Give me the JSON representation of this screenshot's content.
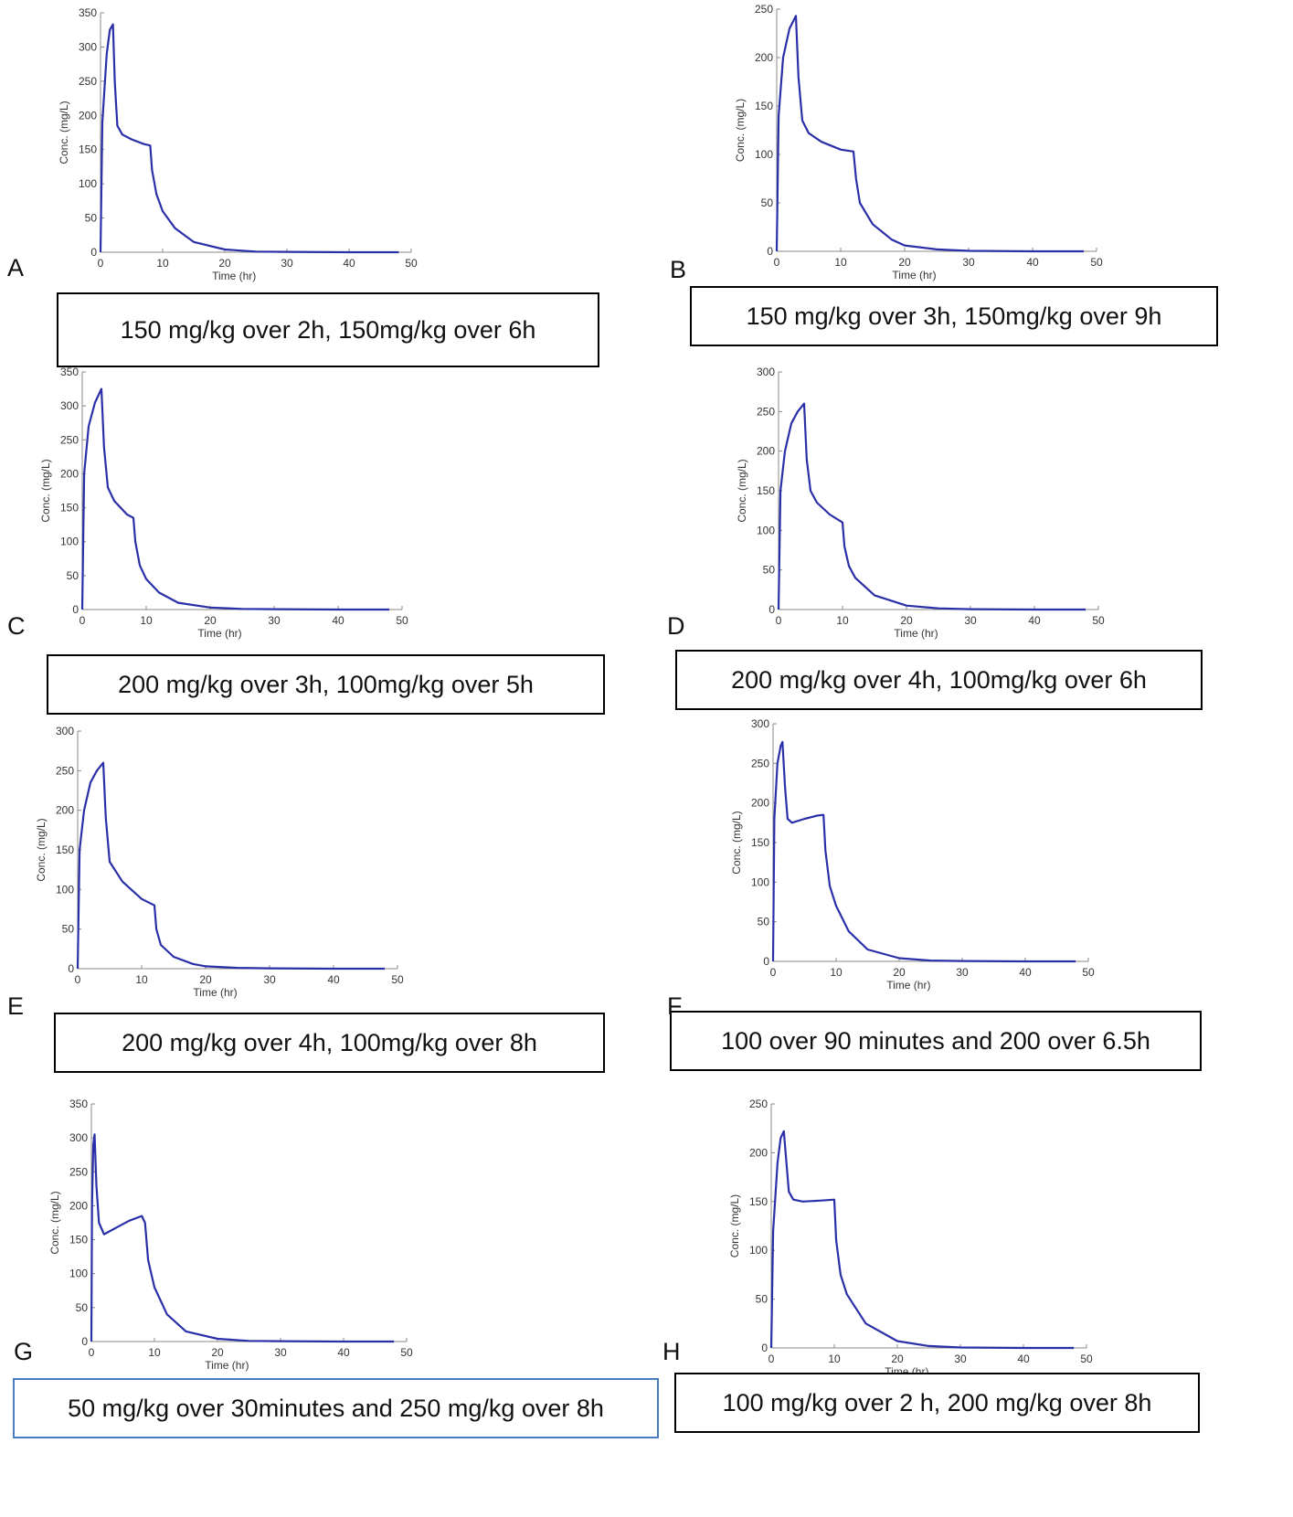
{
  "panel_labels": [
    "A",
    "B",
    "C",
    "D",
    "E",
    "F",
    "G",
    "H"
  ],
  "captions": [
    "150 mg/kg over 2h, 150mg/kg over 6h",
    "150 mg/kg over 3h, 150mg/kg over 9h",
    "200 mg/kg over 3h, 100mg/kg over 5h",
    "200 mg/kg over 4h, 100mg/kg over 6h",
    "200 mg/kg over 4h, 100mg/kg over 8h",
    "100 over 90 minutes and 200 over 6.5h",
    "50 mg/kg over 30minutes and 250 mg/kg over 8h",
    "100 mg/kg over 2 h, 200 mg/kg over 8h"
  ],
  "styles": {
    "line_color": "#2a2fa8",
    "axis_color": "#888888",
    "caption_blue_border": "#4a7cc0"
  },
  "chart_data": [
    {
      "panel": "A",
      "type": "line",
      "xlabel": "Time (hr)",
      "ylabel": "Conc. (mg/L)",
      "xlim": [
        0,
        50
      ],
      "ylim": [
        0,
        350
      ],
      "xticks": [
        0,
        10,
        20,
        30,
        40,
        50
      ],
      "yticks": [
        0,
        50,
        100,
        150,
        200,
        250,
        300,
        350
      ],
      "series": [
        {
          "x": [
            0,
            0.3,
            1,
            1.5,
            2,
            2.3,
            2.7,
            3.5,
            5,
            7,
            8,
            8.3,
            9,
            10,
            12,
            15,
            20,
            25,
            30,
            40,
            48
          ],
          "y": [
            0,
            190,
            290,
            325,
            333,
            250,
            185,
            172,
            165,
            158,
            156,
            120,
            85,
            60,
            35,
            15,
            4,
            1,
            0.5,
            0,
            0
          ]
        }
      ]
    },
    {
      "panel": "B",
      "type": "line",
      "xlabel": "Time (hr)",
      "ylabel": "Conc. (mg/L)",
      "xlim": [
        0,
        50
      ],
      "ylim": [
        0,
        250
      ],
      "xticks": [
        0,
        10,
        20,
        30,
        40,
        50
      ],
      "yticks": [
        0,
        50,
        100,
        150,
        200,
        250
      ],
      "series": [
        {
          "x": [
            0,
            0.3,
            1,
            2,
            3,
            3.4,
            4,
            5,
            7,
            10,
            12,
            12.4,
            13,
            15,
            18,
            20,
            25,
            30,
            40,
            48
          ],
          "y": [
            0,
            140,
            200,
            230,
            243,
            180,
            135,
            122,
            113,
            105,
            103,
            75,
            50,
            28,
            12,
            6,
            2,
            0.5,
            0,
            0
          ]
        }
      ]
    },
    {
      "panel": "C",
      "type": "line",
      "xlabel": "Time (hr)",
      "ylabel": "Conc. (mg/L)",
      "xlim": [
        0,
        50
      ],
      "ylim": [
        0,
        350
      ],
      "xticks": [
        0,
        10,
        20,
        30,
        40,
        50
      ],
      "yticks": [
        0,
        50,
        100,
        150,
        200,
        250,
        300,
        350
      ],
      "series": [
        {
          "x": [
            0,
            0.3,
            1,
            2,
            3,
            3.4,
            4,
            5,
            7,
            8,
            8.3,
            9,
            10,
            12,
            15,
            20,
            25,
            30,
            40,
            48
          ],
          "y": [
            0,
            200,
            270,
            305,
            325,
            240,
            180,
            160,
            140,
            135,
            100,
            65,
            45,
            25,
            10,
            3,
            1,
            0.5,
            0,
            0
          ]
        }
      ]
    },
    {
      "panel": "D",
      "type": "line",
      "xlabel": "Time (hr)",
      "ylabel": "Conc. (mg/L)",
      "xlim": [
        0,
        50
      ],
      "ylim": [
        0,
        300
      ],
      "xticks": [
        0,
        10,
        20,
        30,
        40,
        50
      ],
      "yticks": [
        0,
        50,
        100,
        150,
        200,
        250,
        300
      ],
      "series": [
        {
          "x": [
            0,
            0.3,
            1,
            2,
            3,
            4,
            4.4,
            5,
            6,
            8,
            10,
            10.3,
            11,
            12,
            15,
            20,
            25,
            30,
            40,
            48
          ],
          "y": [
            0,
            150,
            200,
            235,
            250,
            260,
            190,
            150,
            135,
            120,
            110,
            80,
            55,
            40,
            18,
            5,
            1.5,
            0.5,
            0,
            0
          ]
        }
      ]
    },
    {
      "panel": "E",
      "type": "line",
      "xlabel": "Time (hr)",
      "ylabel": "Conc. (mg/L)",
      "xlim": [
        0,
        50
      ],
      "ylim": [
        0,
        300
      ],
      "xticks": [
        0,
        10,
        20,
        30,
        40,
        50
      ],
      "yticks": [
        0,
        50,
        100,
        150,
        200,
        250,
        300
      ],
      "series": [
        {
          "x": [
            0,
            0.3,
            1,
            2,
            3,
            4,
            4.4,
            5,
            7,
            10,
            12,
            12.3,
            13,
            15,
            18,
            20,
            25,
            30,
            40,
            48
          ],
          "y": [
            0,
            150,
            200,
            235,
            250,
            260,
            190,
            135,
            110,
            88,
            80,
            50,
            30,
            15,
            6,
            3,
            1,
            0.5,
            0,
            0
          ]
        }
      ]
    },
    {
      "panel": "F",
      "type": "line",
      "xlabel": "Time (hr)",
      "ylabel": "Conc. (mg/L)",
      "xlim": [
        0,
        50
      ],
      "ylim": [
        0,
        300
      ],
      "xticks": [
        0,
        10,
        20,
        30,
        40,
        50
      ],
      "yticks": [
        0,
        50,
        100,
        150,
        200,
        250,
        300
      ],
      "series": [
        {
          "x": [
            0,
            0.2,
            0.7,
            1.2,
            1.5,
            1.9,
            2.3,
            3,
            5,
            7,
            8,
            8.3,
            9,
            10,
            12,
            15,
            20,
            25,
            30,
            40,
            48
          ],
          "y": [
            0,
            180,
            250,
            272,
            277,
            220,
            180,
            175,
            180,
            184,
            185,
            140,
            95,
            70,
            38,
            15,
            4,
            1,
            0.5,
            0,
            0
          ]
        }
      ]
    },
    {
      "panel": "G",
      "type": "line",
      "xlabel": "Time (hr)",
      "ylabel": "Conc. (mg/L)",
      "xlim": [
        0,
        50
      ],
      "ylim": [
        0,
        350
      ],
      "xticks": [
        0,
        10,
        20,
        30,
        40,
        50
      ],
      "yticks": [
        0,
        50,
        100,
        150,
        200,
        250,
        300,
        350
      ],
      "series": [
        {
          "x": [
            0,
            0.1,
            0.3,
            0.5,
            0.8,
            1.2,
            2,
            4,
            6,
            8,
            8.5,
            9,
            10,
            12,
            15,
            20,
            25,
            30,
            40,
            48
          ],
          "y": [
            0,
            200,
            290,
            305,
            230,
            175,
            158,
            168,
            178,
            185,
            175,
            120,
            80,
            40,
            15,
            4,
            1,
            0.5,
            0,
            0
          ]
        }
      ]
    },
    {
      "panel": "H",
      "type": "line",
      "xlabel": "Time (hr)",
      "ylabel": "Conc. (mg/L)",
      "xlim": [
        0,
        50
      ],
      "ylim": [
        0,
        250
      ],
      "xticks": [
        0,
        10,
        20,
        30,
        40,
        50
      ],
      "yticks": [
        0,
        50,
        100,
        150,
        200,
        250
      ],
      "series": [
        {
          "x": [
            0,
            0.3,
            1,
            1.5,
            2,
            2.4,
            2.8,
            3.5,
            5,
            8,
            10,
            10.3,
            11,
            12,
            15,
            20,
            25,
            30,
            40,
            48
          ],
          "y": [
            0,
            120,
            190,
            215,
            222,
            190,
            160,
            152,
            150,
            151,
            152,
            110,
            75,
            55,
            25,
            7,
            2,
            0.5,
            0,
            0
          ]
        }
      ]
    }
  ]
}
